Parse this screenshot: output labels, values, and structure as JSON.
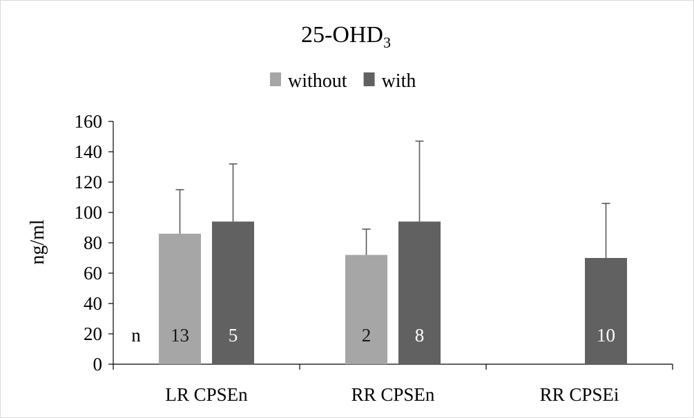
{
  "chart_data": {
    "type": "bar",
    "title": "25-OHD",
    "title_subscript": "3",
    "ylabel": "ng/ml",
    "xlabel": "",
    "ylim": [
      0,
      160
    ],
    "yticks": [
      0,
      20,
      40,
      60,
      80,
      100,
      120,
      140,
      160
    ],
    "grid": false,
    "legend_position": "top-center",
    "categories": [
      "LR CPSEn",
      "RR CPSEn",
      "RR CPSEi"
    ],
    "n_label": "n",
    "series": [
      {
        "name": "without",
        "color": "#a6a6a6",
        "values": [
          86,
          72,
          null
        ],
        "error": [
          29,
          17,
          null
        ],
        "n": [
          "13",
          "2",
          ""
        ],
        "n_label_color": "#1a1a1a"
      },
      {
        "name": "with",
        "color": "#616161",
        "values": [
          94,
          94,
          70
        ],
        "error": [
          38,
          53,
          36
        ],
        "n": [
          "5",
          "8",
          "10"
        ],
        "n_label_color": "#ffffff"
      }
    ]
  }
}
